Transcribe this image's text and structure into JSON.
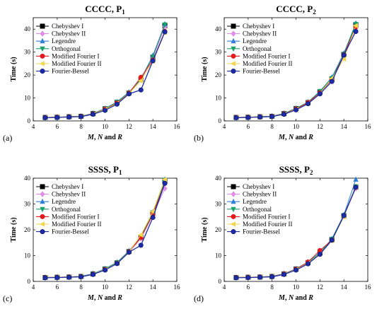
{
  "figure": {
    "panel_letters": [
      "(a)",
      "(b)",
      "(c)",
      "(d)"
    ]
  },
  "chart_data": [
    {
      "type": "line",
      "title": "CCCC, P",
      "title_subscript": "1",
      "xlabel_parts": [
        "M",
        ", ",
        "N",
        " and ",
        "R"
      ],
      "ylabel": "Time (s)",
      "xlim": [
        4,
        16
      ],
      "ylim": [
        0,
        45
      ],
      "xticks": [
        4,
        6,
        8,
        10,
        12,
        14,
        16
      ],
      "yticks": [
        0,
        10,
        20,
        30,
        40
      ],
      "grid": false,
      "legend_position": "top-left",
      "x": [
        5,
        6,
        7,
        8,
        9,
        10,
        11,
        12,
        13,
        14,
        15
      ],
      "series": [
        {
          "name": "Chebyshev I",
          "color": "#000000",
          "marker": "square",
          "values": [
            1.5,
            1.6,
            1.8,
            2.0,
            3.2,
            5.3,
            8.1,
            12.2,
            18.1,
            27.7,
            41.5
          ]
        },
        {
          "name": "Chebyshev II",
          "color": "#e08ee8",
          "marker": "diamond",
          "values": [
            1.5,
            1.6,
            1.8,
            2.0,
            3.1,
            5.2,
            8.0,
            12.0,
            17.9,
            27.5,
            41.0
          ]
        },
        {
          "name": "Legendre",
          "color": "#2f7fd8",
          "marker": "triangle-up",
          "values": [
            1.5,
            1.6,
            1.8,
            2.1,
            3.3,
            5.4,
            8.3,
            12.5,
            18.3,
            28.5,
            42.2
          ]
        },
        {
          "name": "Orthogonal",
          "color": "#1aa06a",
          "marker": "triangle-down",
          "values": [
            1.5,
            1.6,
            1.8,
            2.0,
            3.2,
            5.3,
            8.2,
            12.3,
            18.2,
            28.0,
            42.0
          ]
        },
        {
          "name": "Modified Fourier I",
          "color": "#e41a1c",
          "marker": "circle",
          "values": [
            1.5,
            1.6,
            1.8,
            2.0,
            3.1,
            5.1,
            7.8,
            12.1,
            19.0,
            26.5,
            39.0
          ]
        },
        {
          "name": "Modified Fourier II",
          "color": "#f2d64b",
          "marker": "triangle-left",
          "values": [
            1.5,
            1.6,
            1.8,
            2.0,
            3.0,
            5.0,
            7.6,
            12.0,
            17.5,
            26.0,
            38.5
          ]
        },
        {
          "name": "Fourier-Bessel",
          "color": "#1c2ca8",
          "marker": "circle",
          "values": [
            1.4,
            1.5,
            1.7,
            1.9,
            2.9,
            4.6,
            7.3,
            11.8,
            13.5,
            26.2,
            38.8
          ]
        }
      ]
    },
    {
      "type": "line",
      "title": "CCCC, P",
      "title_subscript": "2",
      "xlabel_parts": [
        "M",
        ", ",
        "N",
        " and ",
        "R"
      ],
      "ylabel": "Time (s)",
      "xlim": [
        4,
        16
      ],
      "ylim": [
        0,
        45
      ],
      "xticks": [
        4,
        6,
        8,
        10,
        12,
        14,
        16
      ],
      "yticks": [
        0,
        10,
        20,
        30,
        40
      ],
      "grid": false,
      "legend_position": "top-left",
      "x": [
        5,
        6,
        7,
        8,
        9,
        10,
        11,
        12,
        13,
        14,
        15
      ],
      "series": [
        {
          "name": "Chebyshev I",
          "color": "#000000",
          "marker": "square",
          "values": [
            1.5,
            1.6,
            1.8,
            2.0,
            3.2,
            5.4,
            8.0,
            12.5,
            18.2,
            29.0,
            41.8
          ]
        },
        {
          "name": "Chebyshev II",
          "color": "#e08ee8",
          "marker": "diamond",
          "values": [
            1.5,
            1.6,
            1.8,
            2.0,
            3.2,
            5.3,
            7.9,
            12.4,
            18.0,
            28.5,
            40.5
          ]
        },
        {
          "name": "Legendre",
          "color": "#2f7fd8",
          "marker": "triangle-up",
          "values": [
            1.5,
            1.6,
            1.8,
            2.1,
            3.3,
            5.5,
            8.2,
            12.8,
            19.0,
            29.5,
            42.5
          ]
        },
        {
          "name": "Orthogonal",
          "color": "#1aa06a",
          "marker": "triangle-down",
          "values": [
            1.5,
            1.6,
            1.8,
            2.0,
            3.2,
            5.4,
            8.1,
            13.0,
            18.6,
            29.2,
            42.2
          ]
        },
        {
          "name": "Modified Fourier I",
          "color": "#e41a1c",
          "marker": "circle",
          "values": [
            1.5,
            1.6,
            1.8,
            2.0,
            3.1,
            5.2,
            8.0,
            12.2,
            18.0,
            28.8,
            41.0
          ]
        },
        {
          "name": "Modified Fourier II",
          "color": "#f2d64b",
          "marker": "triangle-left",
          "values": [
            1.5,
            1.6,
            1.8,
            2.0,
            3.0,
            5.0,
            7.5,
            12.0,
            18.5,
            27.0,
            41.5
          ]
        },
        {
          "name": "Fourier-Bessel",
          "color": "#1c2ca8",
          "marker": "circle",
          "values": [
            1.4,
            1.5,
            1.7,
            1.9,
            2.9,
            4.8,
            7.5,
            11.8,
            17.2,
            28.7,
            39.0
          ]
        }
      ]
    },
    {
      "type": "line",
      "title": "SSSS, P",
      "title_subscript": "1",
      "xlabel_parts": [
        "M",
        ", ",
        "N",
        " and ",
        "R"
      ],
      "ylabel": "Time (s)",
      "xlim": [
        4,
        16
      ],
      "ylim": [
        0,
        40
      ],
      "xticks": [
        4,
        6,
        8,
        10,
        12,
        14,
        16
      ],
      "yticks": [
        0,
        10,
        20,
        30,
        40
      ],
      "grid": false,
      "legend_position": "top-left",
      "x": [
        5,
        6,
        7,
        8,
        9,
        10,
        11,
        12,
        13,
        14,
        15
      ],
      "series": [
        {
          "name": "Chebyshev I",
          "color": "#000000",
          "marker": "square",
          "values": [
            1.5,
            1.6,
            1.7,
            1.9,
            2.9,
            4.8,
            7.2,
            11.6,
            17.0,
            26.5,
            39.0
          ]
        },
        {
          "name": "Chebyshev II",
          "color": "#e08ee8",
          "marker": "diamond",
          "values": [
            1.5,
            1.6,
            1.7,
            1.9,
            2.8,
            4.7,
            7.1,
            11.3,
            16.6,
            25.8,
            36.0
          ]
        },
        {
          "name": "Legendre",
          "color": "#2f7fd8",
          "marker": "triangle-up",
          "values": [
            1.5,
            1.6,
            1.7,
            2.0,
            3.0,
            4.9,
            7.4,
            11.8,
            17.5,
            26.8,
            39.5
          ]
        },
        {
          "name": "Orthogonal",
          "color": "#1aa06a",
          "marker": "triangle-down",
          "values": [
            1.5,
            1.6,
            1.7,
            1.9,
            2.9,
            4.8,
            7.3,
            11.7,
            17.2,
            26.5,
            39.2
          ]
        },
        {
          "name": "Modified Fourier I",
          "color": "#e41a1c",
          "marker": "circle",
          "values": [
            1.5,
            1.6,
            1.7,
            1.9,
            2.8,
            4.6,
            7.0,
            11.5,
            17.0,
            26.0,
            38.0
          ]
        },
        {
          "name": "Modified Fourier II",
          "color": "#f2d64b",
          "marker": "triangle-left",
          "values": [
            1.5,
            1.6,
            1.7,
            1.9,
            2.8,
            4.6,
            7.0,
            11.4,
            18.0,
            27.0,
            39.5
          ]
        },
        {
          "name": "Fourier-Bessel",
          "color": "#1c2ca8",
          "marker": "circle",
          "values": [
            1.4,
            1.5,
            1.6,
            1.8,
            2.7,
            4.4,
            6.9,
            11.3,
            14.0,
            24.8,
            38.0
          ]
        }
      ]
    },
    {
      "type": "line",
      "title": "SSSS, P",
      "title_subscript": "2",
      "xlabel_parts": [
        "M",
        ", ",
        "N",
        " and ",
        "R"
      ],
      "ylabel": "Time (s)",
      "xlim": [
        4,
        16
      ],
      "ylim": [
        0,
        40
      ],
      "xticks": [
        4,
        6,
        8,
        10,
        12,
        14,
        16
      ],
      "yticks": [
        0,
        10,
        20,
        30,
        40
      ],
      "grid": false,
      "legend_position": "top-left",
      "x": [
        5,
        6,
        7,
        8,
        9,
        10,
        11,
        12,
        13,
        14,
        15
      ],
      "series": [
        {
          "name": "Chebyshev I",
          "color": "#000000",
          "marker": "square",
          "values": [
            1.5,
            1.6,
            1.7,
            1.9,
            2.9,
            4.8,
            7.3,
            11.0,
            16.2,
            25.5,
            36.5
          ]
        },
        {
          "name": "Chebyshev II",
          "color": "#e08ee8",
          "marker": "diamond",
          "values": [
            1.5,
            1.6,
            1.7,
            1.9,
            2.9,
            4.7,
            7.2,
            10.8,
            16.0,
            25.2,
            36.0
          ]
        },
        {
          "name": "Legendre",
          "color": "#2f7fd8",
          "marker": "triangle-up",
          "values": [
            1.5,
            1.6,
            1.7,
            2.0,
            3.0,
            4.9,
            7.5,
            11.2,
            16.5,
            25.8,
            39.5
          ]
        },
        {
          "name": "Orthogonal",
          "color": "#1aa06a",
          "marker": "triangle-down",
          "values": [
            1.5,
            1.6,
            1.7,
            1.9,
            2.9,
            4.8,
            7.4,
            11.1,
            16.4,
            25.6,
            36.8
          ]
        },
        {
          "name": "Modified Fourier I",
          "color": "#e41a1c",
          "marker": "circle",
          "values": [
            1.5,
            1.6,
            1.7,
            1.9,
            2.9,
            4.7,
            7.5,
            12.0,
            16.0,
            25.5,
            36.5
          ]
        },
        {
          "name": "Modified Fourier II",
          "color": "#f2d64b",
          "marker": "triangle-left",
          "values": [
            1.5,
            1.6,
            1.7,
            1.9,
            2.8,
            4.6,
            7.0,
            10.7,
            15.8,
            25.0,
            36.5
          ]
        },
        {
          "name": "Fourier-Bessel",
          "color": "#1c2ca8",
          "marker": "circle",
          "values": [
            1.4,
            1.5,
            1.6,
            1.8,
            2.7,
            4.4,
            6.8,
            10.5,
            16.0,
            25.5,
            36.5
          ]
        }
      ]
    }
  ]
}
